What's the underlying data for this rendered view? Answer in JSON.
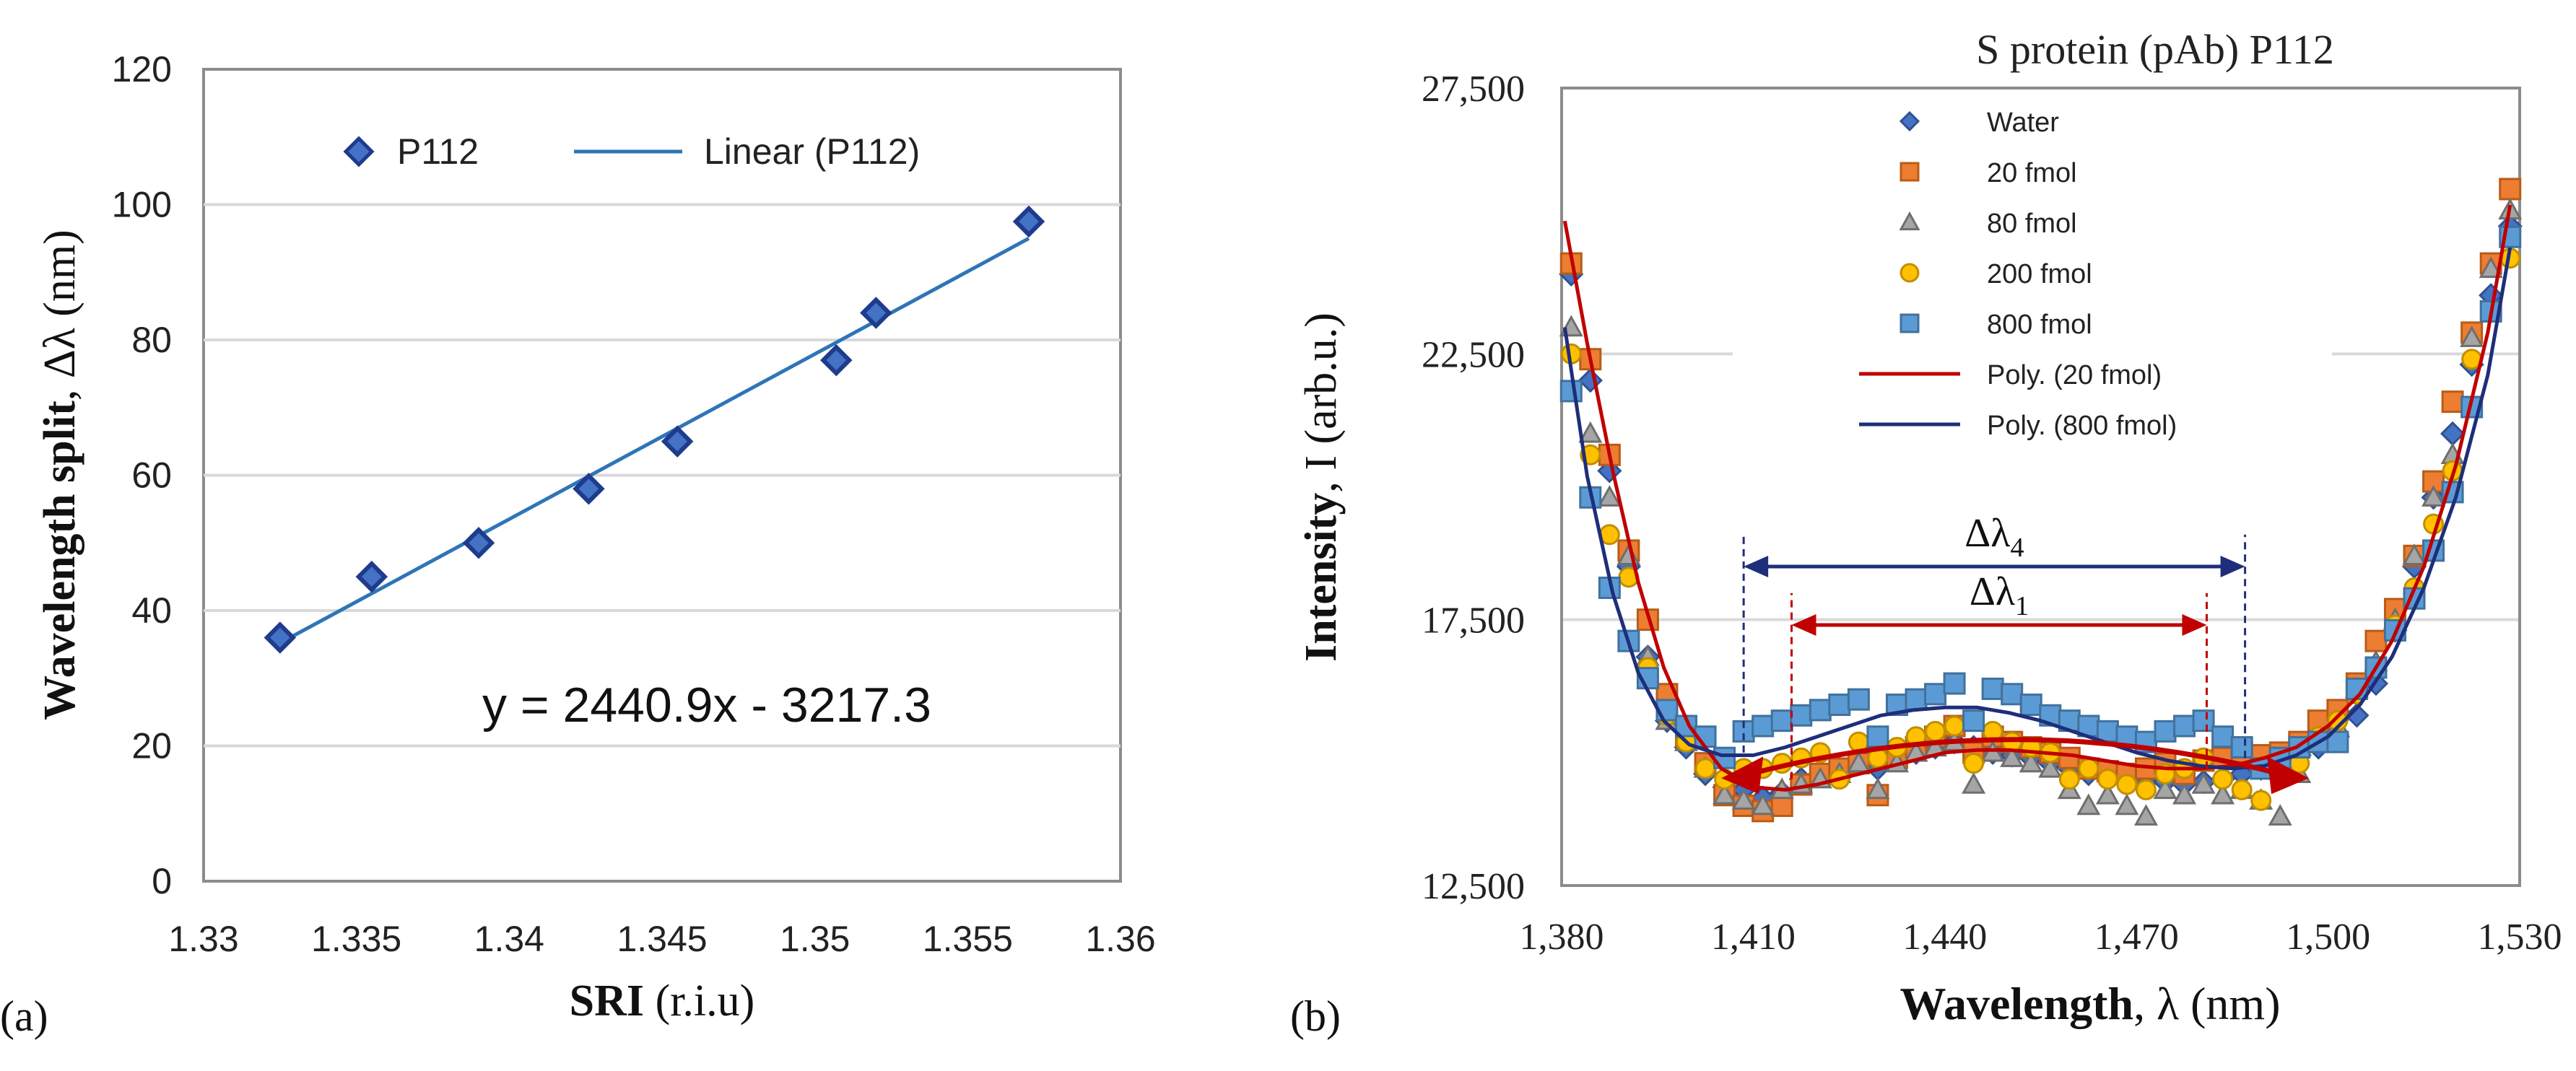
{
  "chart_data": [
    {
      "panel_label": "(a)",
      "type": "scatter",
      "xlabel_bold": "SRI",
      "xlabel_rest": " (r.i.u)",
      "ylabel_bold": "Wavelength split",
      "ylabel_rest": ", Δλ (nm)",
      "xlim": [
        1.33,
        1.36
      ],
      "ylim": [
        0,
        120
      ],
      "x_ticks": [
        "1.33",
        "1.335",
        "1.34",
        "1.345",
        "1.35",
        "1.355",
        "1.36"
      ],
      "y_ticks": [
        "0",
        "20",
        "40",
        "60",
        "80",
        "100",
        "120"
      ],
      "grid": true,
      "legend": {
        "position": "top-left",
        "entries": [
          {
            "label": "P112",
            "kind": "marker"
          },
          {
            "label": "Linear (P112)",
            "kind": "line"
          }
        ]
      },
      "series": [
        {
          "name": "P112",
          "x": [
            1.3325,
            1.3355,
            1.339,
            1.3426,
            1.3455,
            1.3507,
            1.352,
            1.357
          ],
          "y": [
            36,
            45,
            50,
            58,
            65,
            77,
            84,
            97.5
          ],
          "marker": "diamond",
          "color": "#1F3B8C",
          "fill": "#4472C4"
        }
      ],
      "trendline": {
        "name": "Linear (P112)",
        "slope": 2440.9,
        "intercept": -3217.3,
        "x_range": [
          1.3325,
          1.357
        ],
        "color": "#2E75B6"
      },
      "equation": "y = 2440.9x - 3217.3"
    },
    {
      "panel_label": "(b)",
      "type": "scatter",
      "title": "S protein (pAb) P112",
      "xlabel_bold": "Wavelength",
      "xlabel_rest": ", λ (nm)",
      "ylabel_bold": "Intensity",
      "ylabel_rest": ", I (arb.u.)",
      "xlim": [
        1380,
        1530
      ],
      "ylim": [
        12500,
        27500
      ],
      "x_ticks": [
        "1,380",
        "1,410",
        "1,440",
        "1,470",
        "1,500",
        "1,530"
      ],
      "y_ticks": [
        "12,500",
        "17,500",
        "22,500",
        "27,500"
      ],
      "grid": true,
      "legend": {
        "position": "top-center",
        "entries": [
          {
            "label": "Water",
            "kind": "marker",
            "series": 0
          },
          {
            "label": "20 fmol",
            "kind": "marker",
            "series": 1
          },
          {
            "label": "80 fmol",
            "kind": "marker",
            "series": 2
          },
          {
            "label": "200 fmol",
            "kind": "marker",
            "series": 3
          },
          {
            "label": "800 fmol",
            "kind": "marker",
            "series": 4
          },
          {
            "label": "Poly. (20 fmol)",
            "kind": "line",
            "curve": 0
          },
          {
            "label": "Poly. (800 fmol)",
            "kind": "line",
            "curve": 1
          }
        ]
      },
      "series": [
        {
          "name": "Water",
          "marker": "diamond",
          "color": "#4472C4",
          "stroke": "#2F528F",
          "x": [
            1381.5,
            1384.5,
            1387.5,
            1390.5,
            1393.5,
            1396.5,
            1399.5,
            1402.5,
            1405.5,
            1408.5,
            1411.5,
            1414.5,
            1417.5,
            1420.5,
            1423.5,
            1426.5,
            1429.5,
            1432.5,
            1435.5,
            1438.5,
            1441.5,
            1444.5,
            1447.5,
            1450.5,
            1453.5,
            1456.5,
            1459.5,
            1462.5,
            1465.5,
            1468.5,
            1471.5,
            1474.5,
            1477.5,
            1480.5,
            1483.5,
            1486.5,
            1489.5,
            1492.5,
            1495.5,
            1498.5,
            1501.5,
            1504.5,
            1507.5,
            1510.5,
            1513.5,
            1516.5,
            1519.5,
            1522.5,
            1525.5,
            1528.5
          ],
          "y": [
            24000,
            22000,
            20300,
            18500,
            16800,
            15600,
            15100,
            14600,
            14350,
            14300,
            14150,
            14250,
            14500,
            14600,
            14700,
            14800,
            14700,
            14900,
            15000,
            15100,
            15200,
            15100,
            15000,
            14950,
            14900,
            14800,
            14700,
            14600,
            14550,
            14500,
            14450,
            14450,
            14400,
            14450,
            14500,
            14600,
            14700,
            14800,
            14950,
            15100,
            15300,
            15700,
            16300,
            17300,
            18500,
            19800,
            21000,
            22300,
            23600,
            24900
          ]
        },
        {
          "name": "20 fmol",
          "marker": "square",
          "color": "#ED7D31",
          "stroke": "#B85C18",
          "x": [
            1381.5,
            1384.5,
            1387.5,
            1390.5,
            1393.5,
            1396.5,
            1399.5,
            1402.5,
            1405.5,
            1408.5,
            1411.5,
            1414.5,
            1417.5,
            1420.5,
            1423.5,
            1426.5,
            1429.5,
            1432.5,
            1435.5,
            1438.5,
            1441.5,
            1444.5,
            1447.5,
            1450.5,
            1453.5,
            1456.5,
            1459.5,
            1462.5,
            1465.5,
            1468.5,
            1471.5,
            1474.5,
            1477.5,
            1480.5,
            1483.5,
            1486.5,
            1489.5,
            1492.5,
            1495.5,
            1498.5,
            1501.5,
            1504.5,
            1507.5,
            1510.5,
            1513.5,
            1516.5,
            1519.5,
            1522.5,
            1525.5,
            1528.5
          ],
          "y": [
            24200,
            22400,
            20600,
            18800,
            17500,
            16100,
            15300,
            14800,
            14200,
            14000,
            13900,
            14000,
            14400,
            14600,
            14700,
            14800,
            14200,
            14900,
            15100,
            15300,
            15500,
            15000,
            15300,
            15200,
            15100,
            15000,
            14900,
            14700,
            14650,
            14600,
            14700,
            14800,
            14600,
            14850,
            14900,
            15000,
            14950,
            15000,
            15200,
            15600,
            15800,
            16300,
            17100,
            17700,
            18700,
            20100,
            21600,
            22900,
            24200,
            25600
          ]
        },
        {
          "name": "80 fmol",
          "marker": "triangle",
          "color": "#A5A5A5",
          "stroke": "#6E6E6E",
          "x": [
            1381.5,
            1384.5,
            1387.5,
            1390.5,
            1393.5,
            1396.5,
            1399.5,
            1402.5,
            1405.5,
            1408.5,
            1411.5,
            1414.5,
            1417.5,
            1420.5,
            1423.5,
            1426.5,
            1429.5,
            1432.5,
            1435.5,
            1438.5,
            1441.5,
            1444.5,
            1447.5,
            1450.5,
            1453.5,
            1456.5,
            1459.5,
            1462.5,
            1465.5,
            1468.5,
            1471.5,
            1474.5,
            1477.5,
            1480.5,
            1483.5,
            1486.5,
            1489.5,
            1492.5,
            1495.5,
            1498.5,
            1501.5,
            1504.5,
            1507.5,
            1510.5,
            1513.5,
            1516.5,
            1519.5,
            1522.5,
            1525.5,
            1528.5
          ],
          "y": [
            23000,
            21000,
            19800,
            18700,
            16800,
            15600,
            15200,
            14700,
            14200,
            14100,
            14000,
            14300,
            14400,
            14500,
            14600,
            14800,
            14300,
            14800,
            15000,
            15100,
            15200,
            14400,
            15000,
            14900,
            14800,
            14700,
            14300,
            14000,
            14200,
            14000,
            13800,
            14300,
            14200,
            14400,
            14200,
            14300,
            14100,
            13800,
            14600,
            15200,
            15500,
            16200,
            16700,
            17500,
            18700,
            19800,
            20600,
            22800,
            24100,
            25200
          ]
        },
        {
          "name": "200 fmol",
          "marker": "circle",
          "color": "#FFC000",
          "stroke": "#BF8F00",
          "x": [
            1381.5,
            1384.5,
            1387.5,
            1390.5,
            1393.5,
            1396.5,
            1399.5,
            1402.5,
            1405.5,
            1408.5,
            1411.5,
            1414.5,
            1417.5,
            1420.5,
            1423.5,
            1426.5,
            1429.5,
            1432.5,
            1435.5,
            1438.5,
            1441.5,
            1444.5,
            1447.5,
            1450.5,
            1453.5,
            1456.5,
            1459.5,
            1462.5,
            1465.5,
            1468.5,
            1471.5,
            1474.5,
            1477.5,
            1480.5,
            1483.5,
            1486.5,
            1489.5,
            1492.5,
            1495.5,
            1498.5,
            1501.5,
            1504.5,
            1507.5,
            1510.5,
            1513.5,
            1516.5,
            1519.5,
            1522.5,
            1525.5,
            1528.5
          ],
          "y": [
            22500,
            20600,
            19100,
            18300,
            16600,
            15700,
            15200,
            14700,
            14500,
            14700,
            14700,
            14800,
            14900,
            15000,
            14500,
            15200,
            14900,
            15100,
            15300,
            15400,
            15500,
            14800,
            15400,
            15200,
            15100,
            15000,
            14500,
            14700,
            14500,
            14400,
            14300,
            14600,
            14700,
            14900,
            14500,
            14300,
            14100,
            14600,
            14800,
            15300,
            15600,
            16100,
            16600,
            17400,
            18100,
            19300,
            20300,
            22400,
            23300,
            24300
          ]
        },
        {
          "name": "800 fmol",
          "marker": "square",
          "color": "#5B9BD5",
          "stroke": "#41719C",
          "x": [
            1381.5,
            1384.5,
            1387.5,
            1390.5,
            1393.5,
            1396.5,
            1399.5,
            1402.5,
            1405.5,
            1408.5,
            1411.5,
            1414.5,
            1417.5,
            1420.5,
            1423.5,
            1426.5,
            1429.5,
            1432.5,
            1435.5,
            1438.5,
            1441.5,
            1444.5,
            1447.5,
            1450.5,
            1453.5,
            1456.5,
            1459.5,
            1462.5,
            1465.5,
            1468.5,
            1471.5,
            1474.5,
            1477.5,
            1480.5,
            1483.5,
            1486.5,
            1489.5,
            1492.5,
            1495.5,
            1498.5,
            1501.5,
            1504.5,
            1507.5,
            1510.5,
            1513.5,
            1516.5,
            1519.5,
            1522.5,
            1525.5,
            1528.5
          ],
          "y": [
            21800,
            19800,
            18100,
            17100,
            16400,
            15800,
            15500,
            15300,
            14900,
            15400,
            15500,
            15600,
            15700,
            15800,
            15900,
            16000,
            15300,
            15900,
            16000,
            16100,
            16300,
            15600,
            16200,
            16100,
            15900,
            15700,
            15600,
            15500,
            15400,
            15300,
            15200,
            15400,
            15500,
            15600,
            15300,
            15100,
            14700,
            14900,
            15100,
            15200,
            15200,
            16200,
            16600,
            17300,
            17900,
            18800,
            19900,
            21500,
            23300,
            24700
          ]
        }
      ],
      "curves": [
        {
          "name": "Poly. (20 fmol)",
          "color": "#C00000",
          "x": [
            1380.5,
            1384,
            1388,
            1392,
            1396,
            1400,
            1405,
            1410,
            1415,
            1420,
            1425,
            1430,
            1435,
            1440,
            1445,
            1450,
            1455,
            1460,
            1465,
            1470,
            1475,
            1480,
            1485,
            1490,
            1495,
            1500,
            1505,
            1510,
            1515,
            1520,
            1525,
            1528.5
          ],
          "y": [
            25000,
            22700,
            20300,
            18200,
            16600,
            15500,
            14700,
            14350,
            14300,
            14400,
            14550,
            14700,
            14850,
            15000,
            15050,
            15050,
            15000,
            14950,
            14850,
            14750,
            14700,
            14700,
            14750,
            14900,
            15100,
            15500,
            16100,
            17100,
            18500,
            20400,
            22900,
            25300
          ]
        },
        {
          "name": "Poly. (800 fmol)",
          "color": "#1F2E7A",
          "x": [
            1380.5,
            1384,
            1388,
            1392,
            1396,
            1400,
            1405,
            1410,
            1415,
            1420,
            1425,
            1430,
            1435,
            1440,
            1445,
            1450,
            1455,
            1460,
            1465,
            1470,
            1475,
            1480,
            1485,
            1490,
            1495,
            1500,
            1505,
            1510,
            1515,
            1520,
            1525,
            1528.5
          ],
          "y": [
            23000,
            20200,
            18000,
            16500,
            15600,
            15150,
            14950,
            14950,
            15100,
            15300,
            15500,
            15700,
            15800,
            15850,
            15850,
            15750,
            15600,
            15400,
            15200,
            15000,
            14850,
            14750,
            14700,
            14750,
            14950,
            15300,
            15900,
            16800,
            18100,
            19800,
            22100,
            24500
          ]
        }
      ],
      "annotations": {
        "delta4": {
          "label_main": "Δλ",
          "label_sub": "4",
          "x_from": 1408.5,
          "x_to": 1487,
          "y": 18500,
          "color": "#1F2E7A"
        },
        "delta1": {
          "label_main": "Δλ",
          "label_sub": "1",
          "x_from": 1416,
          "x_to": 1481,
          "y": 17400,
          "color": "#C00000"
        },
        "vlines": [
          {
            "x": 1408.5,
            "from_y": 15000,
            "to_y": 19100,
            "color": "#1F2E7A"
          },
          {
            "x": 1487,
            "from_y": 14900,
            "to_y": 19100,
            "color": "#1F2E7A"
          },
          {
            "x": 1416,
            "from_y": 14500,
            "to_y": 18000,
            "color": "#C00000"
          },
          {
            "x": 1481,
            "from_y": 14700,
            "to_y": 18000,
            "color": "#C00000"
          }
        ],
        "big_arrow": {
          "x_from": 1405,
          "x_to": 1497,
          "y_bottom": 14600,
          "color": "#C00000"
        }
      }
    }
  ]
}
